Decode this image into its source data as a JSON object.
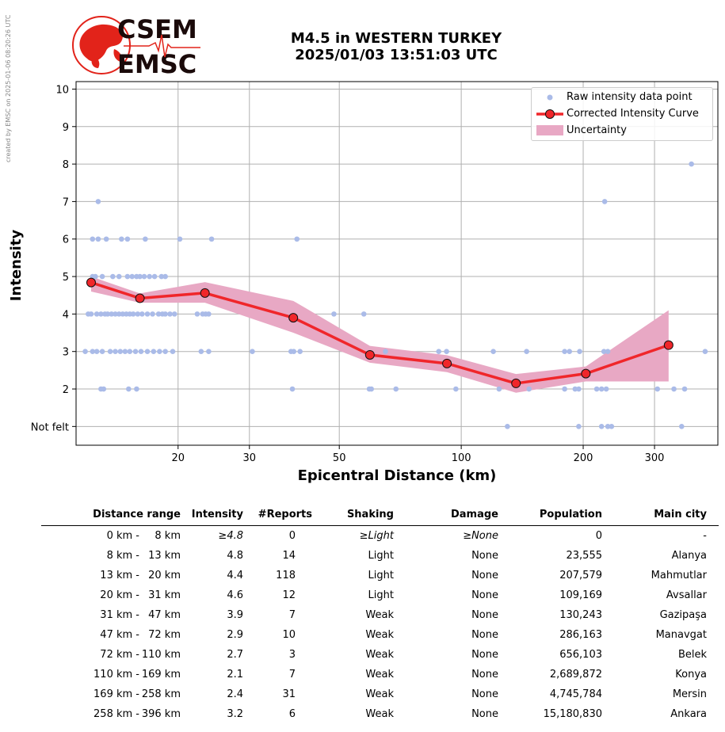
{
  "credit": "created by EMSC on 2025-01-06 08:20:26 UTC",
  "logo": {
    "line1": "CSEM",
    "line2": "EMSC",
    "color": "#e2231a"
  },
  "title": {
    "line1": "M4.5 in WESTERN TURKEY",
    "line2": "2025/01/03 13:51:03 UTC"
  },
  "chart_data": {
    "type": "line",
    "xlabel": "Epicentral Distance (km)",
    "ylabel": "Intensity",
    "xscale": "log",
    "xlim": [
      11.2,
      430
    ],
    "ylim": [
      0.5,
      10.2
    ],
    "xticks": [
      20,
      30,
      50,
      100,
      200,
      300
    ],
    "yticks": [
      {
        "v": 1,
        "label": "Not felt"
      },
      {
        "v": 2,
        "label": "2"
      },
      {
        "v": 3,
        "label": "3"
      },
      {
        "v": 4,
        "label": "4"
      },
      {
        "v": 5,
        "label": "5"
      },
      {
        "v": 6,
        "label": "6"
      },
      {
        "v": 7,
        "label": "7"
      },
      {
        "v": 8,
        "label": "8"
      },
      {
        "v": 9,
        "label": "9"
      },
      {
        "v": 10,
        "label": "10"
      }
    ],
    "grid": true,
    "legend_position": "top-right",
    "legend": [
      "Raw intensity data point",
      "Corrected Intensity Curve",
      "Uncertainty"
    ],
    "colors": {
      "raw": "#aabbe8",
      "curve": "#f0262a",
      "band": "#e8a8c4"
    },
    "curve": {
      "x": [
        12.2,
        16.1,
        23.3,
        38.5,
        59.5,
        92.2,
        136.5,
        203.0,
        325.0
      ],
      "y": [
        4.84,
        4.42,
        4.56,
        3.9,
        2.91,
        2.68,
        2.15,
        2.41,
        3.17
      ]
    },
    "band": {
      "x": [
        12.2,
        16.1,
        23.3,
        38.5,
        59.5,
        92.2,
        136.5,
        203.0,
        325.0
      ],
      "upper": [
        5.0,
        4.55,
        4.85,
        4.35,
        3.15,
        2.9,
        2.4,
        2.6,
        4.1
      ],
      "lower": [
        4.6,
        4.3,
        4.3,
        3.5,
        2.7,
        2.45,
        1.9,
        2.2,
        2.2
      ]
    },
    "raw_points": [
      [
        12.3,
        5
      ],
      [
        12.5,
        5
      ],
      [
        12.2,
        4
      ],
      [
        12.6,
        4
      ],
      [
        12.9,
        4
      ],
      [
        13.2,
        4
      ],
      [
        13.4,
        4
      ],
      [
        13.7,
        4
      ],
      [
        14.0,
        4
      ],
      [
        14.3,
        4
      ],
      [
        14.6,
        4
      ],
      [
        14.9,
        4
      ],
      [
        15.2,
        4
      ],
      [
        15.5,
        4
      ],
      [
        15.9,
        4
      ],
      [
        16.3,
        4
      ],
      [
        16.8,
        4
      ],
      [
        17.3,
        4
      ],
      [
        17.9,
        4
      ],
      [
        18.3,
        4
      ],
      [
        18.6,
        4
      ],
      [
        19.1,
        4
      ],
      [
        19.6,
        4
      ],
      [
        22.3,
        4
      ],
      [
        23.0,
        4
      ],
      [
        23.4,
        4
      ],
      [
        23.8,
        4
      ],
      [
        48.5,
        4
      ],
      [
        57.5,
        4
      ],
      [
        12.0,
        4
      ],
      [
        11.8,
        3
      ],
      [
        12.3,
        3
      ],
      [
        12.6,
        3
      ],
      [
        13.0,
        3
      ],
      [
        13.6,
        3
      ],
      [
        14.0,
        3
      ],
      [
        14.4,
        3
      ],
      [
        14.8,
        3
      ],
      [
        15.2,
        3
      ],
      [
        15.7,
        3
      ],
      [
        16.2,
        3
      ],
      [
        16.8,
        3
      ],
      [
        17.4,
        3
      ],
      [
        18.0,
        3
      ],
      [
        18.6,
        3
      ],
      [
        19.4,
        3
      ],
      [
        22.8,
        3
      ],
      [
        23.8,
        3
      ],
      [
        30.5,
        3
      ],
      [
        38.0,
        3
      ],
      [
        38.6,
        3
      ],
      [
        40.0,
        3
      ],
      [
        65.0,
        3
      ],
      [
        88.0,
        3
      ],
      [
        92.0,
        3
      ],
      [
        120.0,
        3
      ],
      [
        145.0,
        3
      ],
      [
        180.0,
        3
      ],
      [
        185.0,
        3
      ],
      [
        196.0,
        3
      ],
      [
        225.0,
        3
      ],
      [
        230.0,
        3
      ],
      [
        400.0,
        3
      ],
      [
        13.0,
        5
      ],
      [
        13.8,
        5
      ],
      [
        14.3,
        5
      ],
      [
        15.0,
        5
      ],
      [
        15.4,
        5
      ],
      [
        15.8,
        5
      ],
      [
        16.1,
        5
      ],
      [
        16.5,
        5
      ],
      [
        17.0,
        5
      ],
      [
        17.5,
        5
      ],
      [
        18.2,
        5
      ],
      [
        18.6,
        5
      ],
      [
        12.3,
        6
      ],
      [
        12.7,
        6
      ],
      [
        13.3,
        6
      ],
      [
        14.5,
        6
      ],
      [
        15.0,
        6
      ],
      [
        16.6,
        6
      ],
      [
        20.2,
        6
      ],
      [
        24.2,
        6
      ],
      [
        39.3,
        6
      ],
      [
        12.7,
        7
      ],
      [
        12.9,
        2
      ],
      [
        13.1,
        2
      ],
      [
        15.1,
        2
      ],
      [
        15.8,
        2
      ],
      [
        38.3,
        2
      ],
      [
        59.3,
        2
      ],
      [
        60.0,
        2
      ],
      [
        69.0,
        2
      ],
      [
        97.0,
        2
      ],
      [
        124.0,
        2
      ],
      [
        147.0,
        2
      ],
      [
        180.0,
        2
      ],
      [
        191.0,
        2
      ],
      [
        195.0,
        2
      ],
      [
        216.0,
        2
      ],
      [
        222.0,
        2
      ],
      [
        228.0,
        2
      ],
      [
        305.0,
        2
      ],
      [
        335.0,
        2
      ],
      [
        356.0,
        2
      ],
      [
        226.0,
        7
      ],
      [
        370.0,
        8
      ],
      [
        130.0,
        1
      ],
      [
        195.0,
        1
      ],
      [
        222.0,
        1
      ],
      [
        230.0,
        1
      ],
      [
        235.0,
        1
      ],
      [
        350.0,
        1
      ]
    ]
  },
  "table": {
    "headers": [
      "Distance range",
      "Intensity",
      "#Reports",
      "Shaking",
      "Damage",
      "Population",
      "Main city"
    ],
    "rows": [
      [
        "0 km -",
        "8 km",
        "≥4.8",
        "0",
        "≥Light",
        "≥None",
        "0",
        "-"
      ],
      [
        "8 km -",
        "13 km",
        "4.8",
        "14",
        "Light",
        "None",
        "23,555",
        "Alanya"
      ],
      [
        "13 km -",
        "20 km",
        "4.4",
        "118",
        "Light",
        "None",
        "207,579",
        "Mahmutlar"
      ],
      [
        "20 km -",
        "31 km",
        "4.6",
        "12",
        "Light",
        "None",
        "109,169",
        "Avsallar"
      ],
      [
        "31 km -",
        "47 km",
        "3.9",
        "7",
        "Weak",
        "None",
        "130,243",
        "Gazipaşa"
      ],
      [
        "47 km -",
        "72 km",
        "2.9",
        "10",
        "Weak",
        "None",
        "286,163",
        "Manavgat"
      ],
      [
        "72 km -",
        "110 km",
        "2.7",
        "3",
        "Weak",
        "None",
        "656,103",
        "Belek"
      ],
      [
        "110 km -",
        "169 km",
        "2.1",
        "7",
        "Weak",
        "None",
        "2,689,872",
        "Konya"
      ],
      [
        "169 km -",
        "258 km",
        "2.4",
        "31",
        "Weak",
        "None",
        "4,745,784",
        "Mersin"
      ],
      [
        "258 km -",
        "396 km",
        "3.2",
        "6",
        "Weak",
        "None",
        "15,180,830",
        "Ankara"
      ]
    ]
  }
}
